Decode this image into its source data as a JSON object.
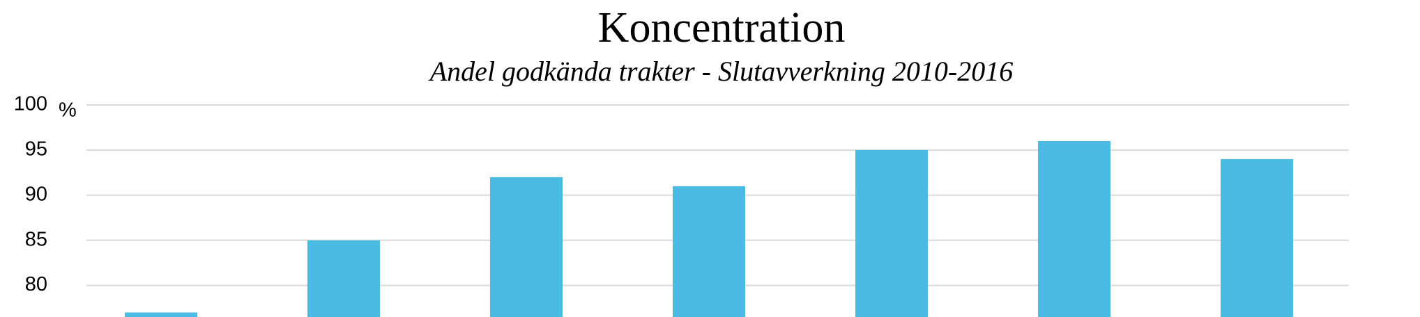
{
  "chart_data": {
    "type": "bar",
    "title": "Koncentration",
    "subtitle": "Andel godkända trakter - Slutavverkning 2010-2016",
    "y_unit": "%",
    "values": [
      77,
      85,
      92,
      91,
      95,
      96,
      94
    ],
    "color": "#4bbbe3",
    "ylim": [
      76.5,
      100
    ],
    "yticks": [
      80,
      85,
      90,
      95,
      100
    ],
    "grid": true
  }
}
